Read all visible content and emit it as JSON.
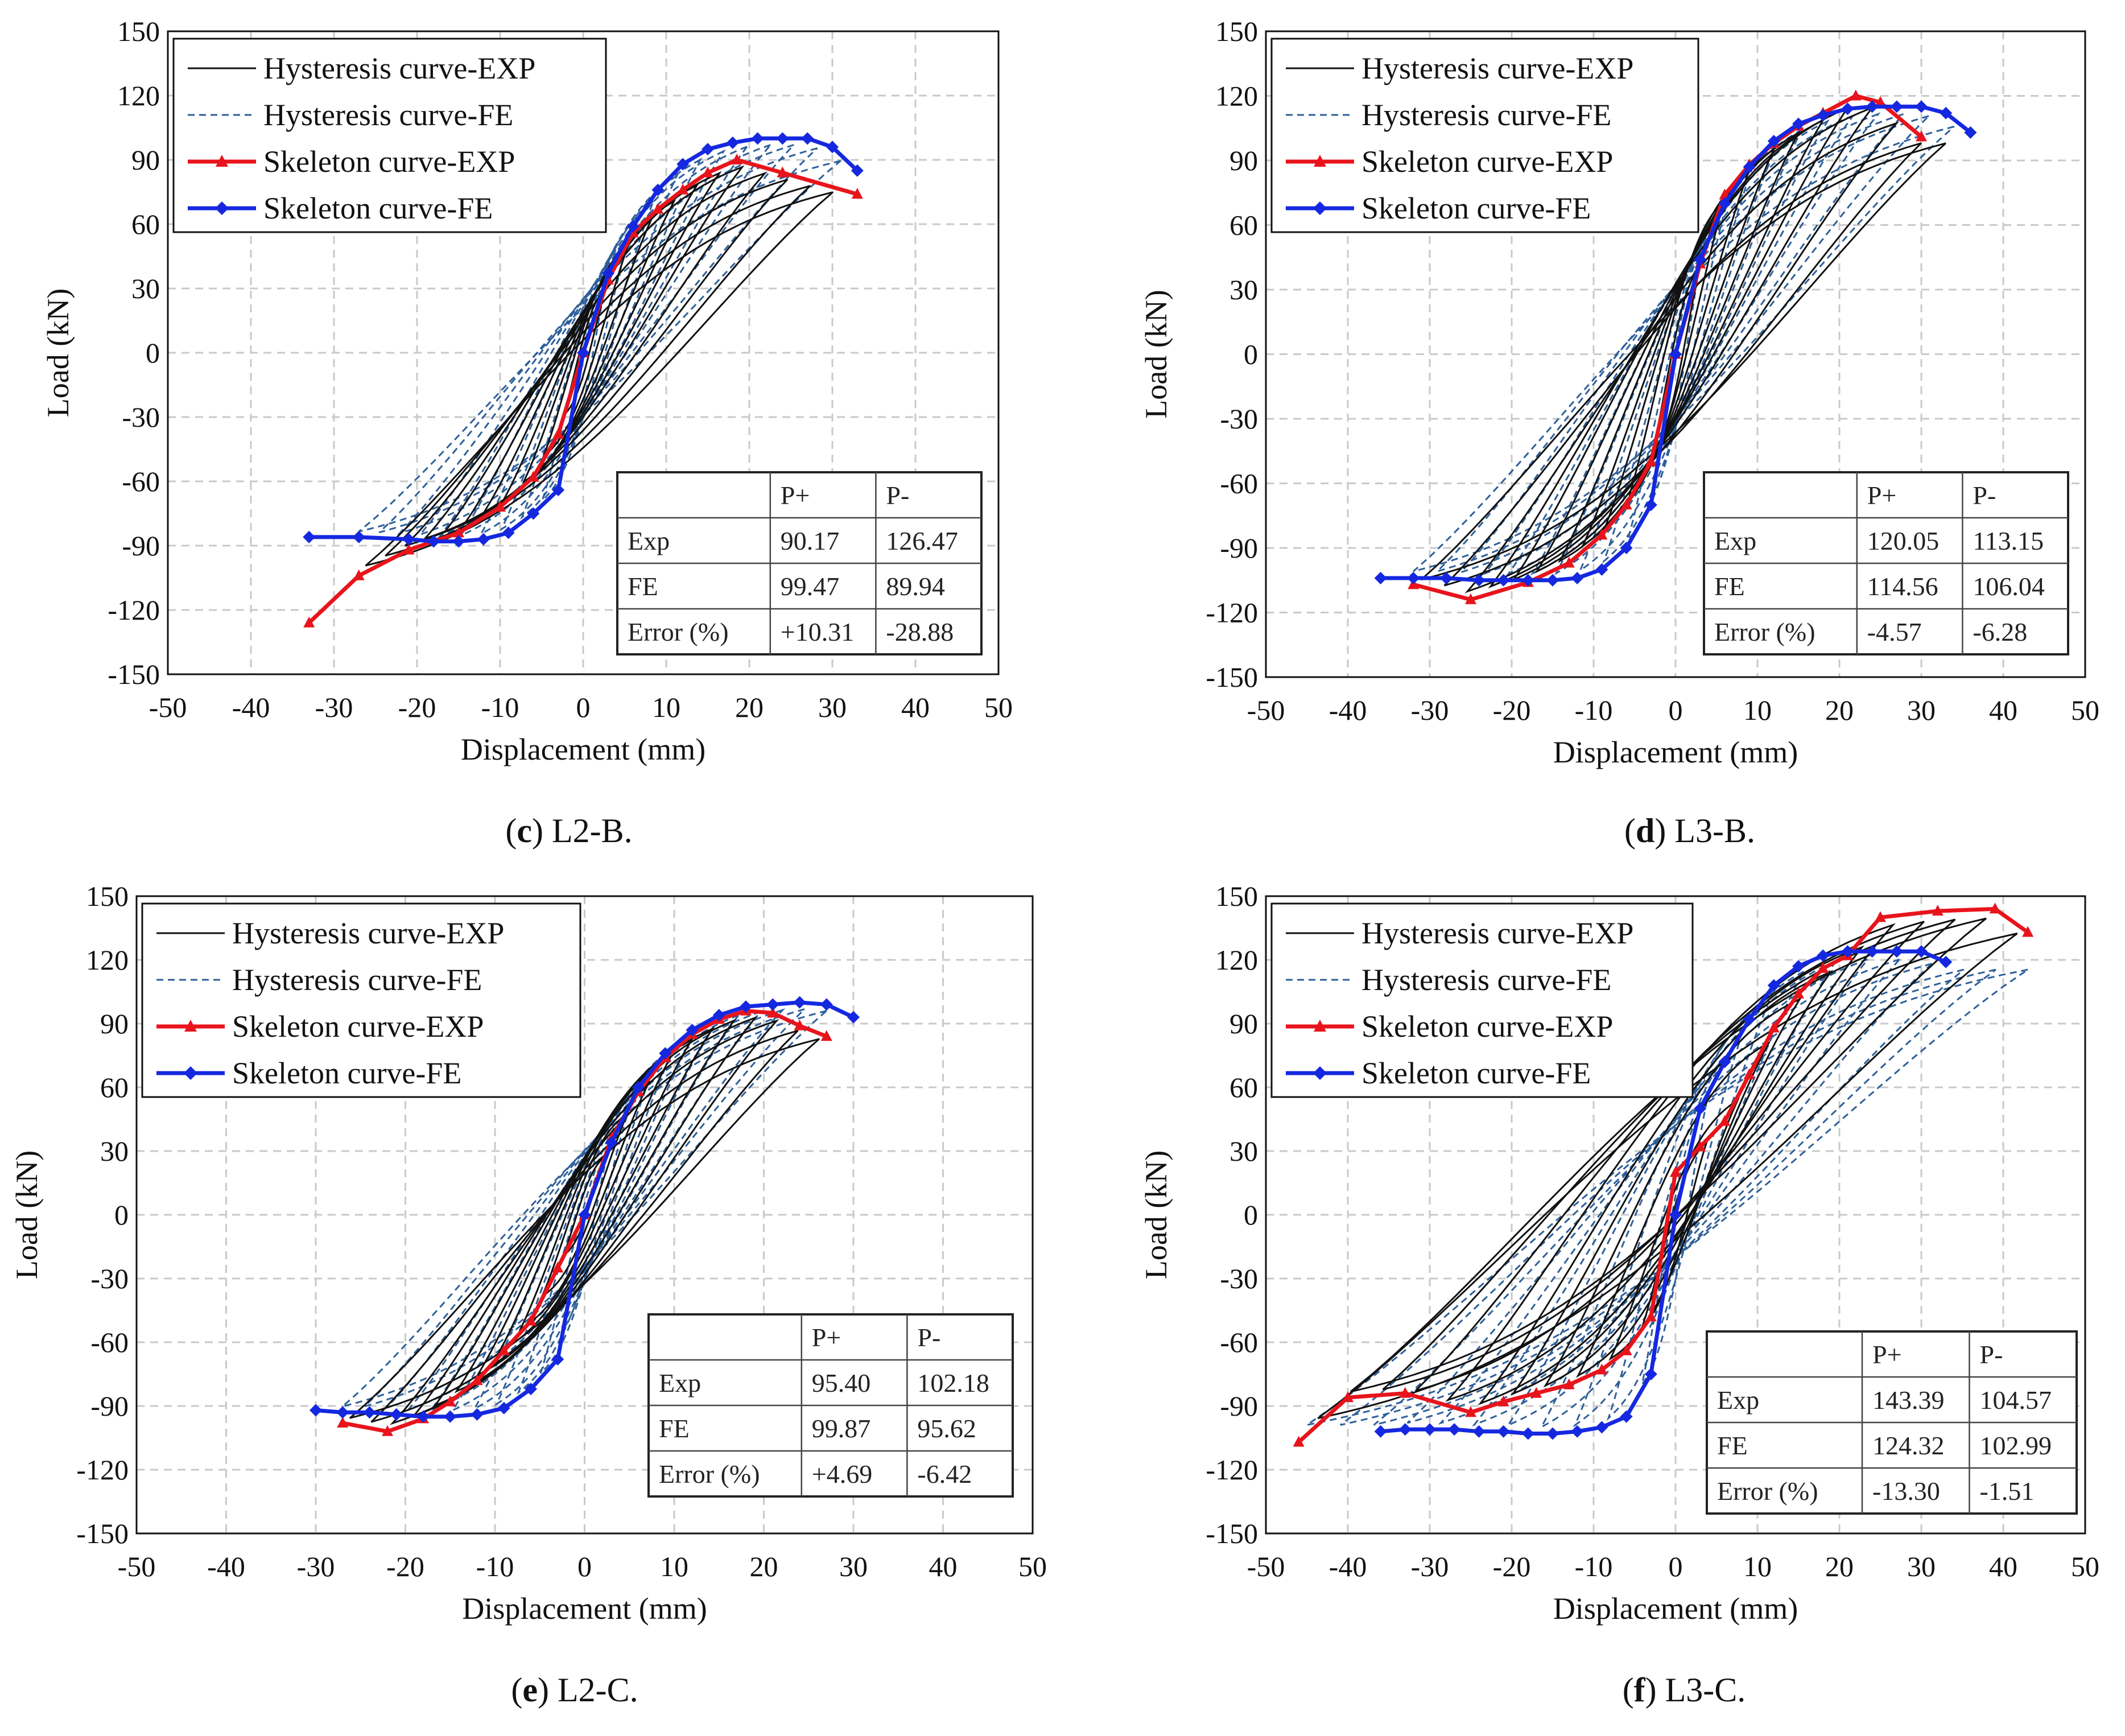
{
  "chart_data": [
    {
      "type": "line",
      "caption_letter": "c",
      "caption_rest": " L2-B.",
      "xlabel": "Displacement (mm)",
      "ylabel": "Load (kN)",
      "xlim": [
        -50,
        50
      ],
      "ylim": [
        -150,
        150
      ],
      "xticks": [
        -50,
        -40,
        -30,
        -20,
        -10,
        0,
        10,
        20,
        30,
        40,
        50
      ],
      "yticks": [
        150,
        120,
        90,
        60,
        30,
        0,
        -30,
        -60,
        -90,
        -120,
        -150
      ],
      "grid": true,
      "legend": [
        "Hysteresis curve-EXP",
        "Hysteresis curve-FE",
        "Skeleton curve-EXP",
        "Skeleton curve-FE"
      ],
      "amp": {
        "pos": 31,
        "neg": 27
      },
      "series": [
        {
          "name": "Skeleton curve-EXP",
          "x": [
            -33,
            -27,
            -21,
            -15,
            -10,
            -6,
            -3,
            0,
            3,
            6,
            9,
            12,
            15,
            18.5,
            24,
            33
          ],
          "y": [
            -126,
            -104,
            -92,
            -84,
            -72,
            -58,
            -38,
            0,
            34,
            56,
            67,
            76,
            84,
            90,
            84,
            74
          ]
        },
        {
          "name": "Skeleton curve-FE",
          "x": [
            -33,
            -27,
            -21,
            -18,
            -15,
            -12,
            -9,
            -6,
            -3,
            0,
            3,
            6,
            9,
            12,
            15,
            18,
            21,
            24,
            27,
            30,
            33
          ],
          "y": [
            -86,
            -86,
            -87,
            -88,
            -88,
            -87,
            -84,
            -75,
            -64,
            0,
            37,
            59,
            76,
            88,
            95,
            98,
            100,
            100,
            100,
            96,
            85
          ]
        }
      ],
      "table": {
        "col_labels": [
          "P+",
          "P-"
        ],
        "rows": [
          {
            "label": "Exp",
            "pos": "90.17",
            "neg": "126.47"
          },
          {
            "label": "FE",
            "pos": "99.47",
            "neg": "89.94"
          },
          {
            "label": "Error (%)",
            "pos": "+10.31",
            "neg": "-28.88"
          }
        ]
      }
    },
    {
      "type": "line",
      "caption_letter": "d",
      "caption_rest": " L3-B.",
      "xlabel": "Displacement (mm)",
      "ylabel": "Load (kN)",
      "xlim": [
        -50,
        50
      ],
      "ylim": [
        -150,
        150
      ],
      "xticks": [
        -50,
        -40,
        -30,
        -20,
        -10,
        0,
        10,
        20,
        30,
        40,
        50
      ],
      "yticks": [
        150,
        120,
        90,
        60,
        30,
        0,
        -30,
        -60,
        -90,
        -120,
        -150
      ],
      "grid": true,
      "legend": [
        "Hysteresis curve-EXP",
        "Hysteresis curve-FE",
        "Skeleton curve-EXP",
        "Skeleton curve-FE"
      ],
      "amp": {
        "pos": 34,
        "neg": 32
      },
      "series": [
        {
          "name": "Skeleton curve-EXP",
          "x": [
            -32,
            -25,
            -18,
            -13,
            -9,
            -6,
            -3,
            0,
            3,
            6,
            9,
            12,
            15,
            18,
            22,
            25,
            30
          ],
          "y": [
            -107,
            -114,
            -106,
            -97,
            -84,
            -70,
            -50,
            0,
            42,
            74,
            88,
            98,
            106,
            112,
            120,
            117,
            101
          ]
        },
        {
          "name": "Skeleton curve-FE",
          "x": [
            -36,
            -32,
            -28,
            -24,
            -21,
            -18,
            -15,
            -12,
            -9,
            -6,
            -3,
            0,
            3,
            6,
            9,
            12,
            15,
            18,
            21,
            24,
            27,
            30,
            33,
            36
          ],
          "y": [
            -104,
            -104,
            -104,
            -105,
            -105,
            -105,
            -105,
            -104,
            -100,
            -90,
            -70,
            0,
            44,
            70,
            87,
            99,
            107,
            111,
            114,
            115,
            115,
            115,
            112,
            103
          ]
        }
      ],
      "table": {
        "col_labels": [
          "P+",
          "P-"
        ],
        "rows": [
          {
            "label": "Exp",
            "pos": "120.05",
            "neg": "113.15"
          },
          {
            "label": "FE",
            "pos": "114.56",
            "neg": "106.04"
          },
          {
            "label": "Error (%)",
            "pos": "-4.57",
            "neg": "-6.28"
          }
        ]
      }
    },
    {
      "type": "line",
      "caption_letter": "e",
      "caption_rest": " L2-C.",
      "xlabel": "Displacement (mm)",
      "ylabel": "Load (kN)",
      "xlim": [
        -50,
        50
      ],
      "ylim": [
        -150,
        150
      ],
      "xticks": [
        -50,
        -40,
        -30,
        -20,
        -10,
        0,
        10,
        20,
        30,
        40,
        50
      ],
      "yticks": [
        150,
        120,
        90,
        60,
        30,
        0,
        -30,
        -60,
        -90,
        -120,
        -150
      ],
      "grid": true,
      "legend": [
        "Hysteresis curve-EXP",
        "Hysteresis curve-FE",
        "Skeleton curve-EXP",
        "Skeleton curve-FE"
      ],
      "amp": {
        "pos": 27,
        "neg": 27
      },
      "series": [
        {
          "name": "Skeleton curve-EXP",
          "x": [
            -27,
            -22,
            -18,
            -15,
            -12,
            -9,
            -6,
            -3,
            0,
            3,
            6,
            9,
            12,
            15,
            18,
            21,
            24,
            27
          ],
          "y": [
            -98,
            -102,
            -96,
            -88,
            -78,
            -64,
            -50,
            -25,
            0,
            36,
            58,
            74,
            85,
            92,
            96,
            95,
            89,
            84
          ]
        },
        {
          "name": "Skeleton curve-FE",
          "x": [
            -30,
            -27,
            -24,
            -21,
            -18,
            -15,
            -12,
            -9,
            -6,
            -3,
            0,
            3,
            6,
            9,
            12,
            15,
            18,
            21,
            24,
            27,
            30
          ],
          "y": [
            -92,
            -93,
            -93,
            -94,
            -95,
            -95,
            -94,
            -91,
            -82,
            -68,
            0,
            34,
            60,
            76,
            87,
            94,
            98,
            99,
            100,
            99,
            93
          ]
        }
      ],
      "table": {
        "col_labels": [
          "P+",
          "P-"
        ],
        "rows": [
          {
            "label": "Exp",
            "pos": "95.40",
            "neg": "102.18"
          },
          {
            "label": "FE",
            "pos": "99.87",
            "neg": "95.62"
          },
          {
            "label": "Error (%)",
            "pos": "+4.69",
            "neg": "-6.42"
          }
        ]
      }
    },
    {
      "type": "line",
      "caption_letter": "f",
      "caption_rest": " L3-C.",
      "xlabel": "Displacement (mm)",
      "ylabel": "Load (kN)",
      "xlim": [
        -50,
        50
      ],
      "ylim": [
        -150,
        150
      ],
      "xticks": [
        -50,
        -40,
        -30,
        -20,
        -10,
        0,
        10,
        20,
        30,
        40,
        50
      ],
      "yticks": [
        150,
        120,
        90,
        60,
        30,
        0,
        -30,
        -60,
        -90,
        -120,
        -150
      ],
      "grid": true,
      "legend": [
        "Hysteresis curve-EXP",
        "Hysteresis curve-FE",
        "Skeleton curve-EXP",
        "Skeleton curve-FE"
      ],
      "amp": {
        "pos": 43,
        "neg": 45
      },
      "series": [
        {
          "name": "Skeleton curve-EXP",
          "x": [
            -46,
            -40,
            -33,
            -25,
            -21,
            -17,
            -13,
            -9,
            -6,
            -3,
            0,
            3,
            6,
            9,
            12,
            15,
            18,
            21,
            25,
            32,
            39,
            43
          ],
          "y": [
            -107,
            -86,
            -84,
            -93,
            -88,
            -84,
            -80,
            -73,
            -64,
            -48,
            20,
            32,
            44,
            66,
            88,
            104,
            116,
            122,
            140,
            143,
            144,
            133
          ]
        },
        {
          "name": "Skeleton curve-FE",
          "x": [
            -36,
            -33,
            -30,
            -27,
            -24,
            -21,
            -18,
            -15,
            -12,
            -9,
            -6,
            -3,
            0,
            3,
            6,
            9,
            12,
            15,
            18,
            21,
            24,
            27,
            30,
            33
          ],
          "y": [
            -102,
            -101,
            -101,
            -101,
            -102,
            -102,
            -103,
            -103,
            -102,
            -100,
            -95,
            -75,
            0,
            50,
            72,
            92,
            108,
            117,
            122,
            124,
            124,
            124,
            124,
            119
          ]
        }
      ],
      "table": {
        "col_labels": [
          "P+",
          "P-"
        ],
        "rows": [
          {
            "label": "Exp",
            "pos": "143.39",
            "neg": "104.57"
          },
          {
            "label": "FE",
            "pos": "124.32",
            "neg": "102.99"
          },
          {
            "label": "Error (%)",
            "pos": "-13.30",
            "neg": "-1.51"
          }
        ]
      }
    }
  ]
}
